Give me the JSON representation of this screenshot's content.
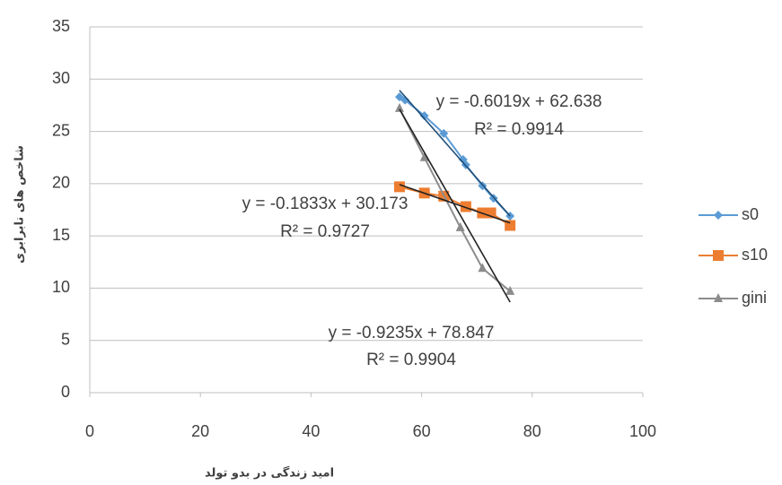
{
  "chart_data": {
    "type": "scatter",
    "xlim": [
      0,
      100
    ],
    "xticks": [
      0,
      20,
      40,
      60,
      80,
      100
    ],
    "ylim": [
      0,
      35
    ],
    "yticks": [
      0,
      5,
      10,
      15,
      20,
      25,
      30,
      35
    ],
    "grid": true,
    "x_label": "امید زندگی در بدو تولد",
    "y_label": "شاخص های نابرابری",
    "legend": "right",
    "series": [
      {
        "name": "s0",
        "color": "#5b9bd5",
        "marker": "diamond",
        "x": [
          56,
          57,
          60.5,
          64,
          67.5,
          68,
          71,
          73,
          76
        ],
        "values": [
          28.3,
          28.0,
          26.5,
          24.8,
          22.3,
          21.8,
          19.8,
          18.6,
          16.9
        ],
        "trendline": {
          "slope": -0.6019,
          "intercept": 62.638,
          "color": "#1f4e79",
          "equation_label": "y = -0.6019x + 62.638",
          "r2_label": "R² = 0.9914"
        }
      },
      {
        "name": "s10",
        "color": "#ed7d31",
        "marker": "square",
        "x": [
          56,
          60.5,
          64,
          68,
          71,
          72.5,
          76
        ],
        "values": [
          19.7,
          19.1,
          18.8,
          17.8,
          17.2,
          17.2,
          16.0
        ],
        "trendline": {
          "slope": -0.1833,
          "intercept": 30.173,
          "color": "#222222",
          "equation_label": "y = -0.1833x + 30.173",
          "r2_label": "R² = 0.9727"
        }
      },
      {
        "name": "gini",
        "color": "#8c8c8c",
        "marker": "triangle",
        "x": [
          56,
          60.5,
          67,
          71,
          76
        ],
        "values": [
          27.2,
          22.5,
          15.8,
          11.9,
          9.7
        ],
        "trendline": {
          "slope": -0.9235,
          "intercept": 78.847,
          "color": "#222222",
          "equation_label": "y = -0.9235x + 78.847",
          "r2_label": "R² = 0.9904"
        }
      }
    ]
  }
}
